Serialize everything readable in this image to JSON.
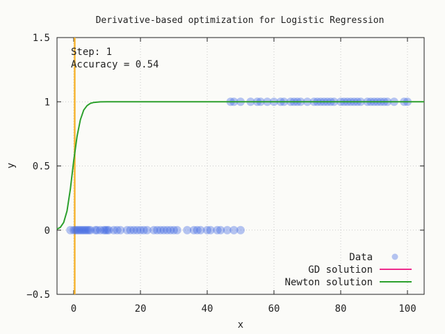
{
  "chart_data": {
    "type": "scatter",
    "title": "Derivative-based optimization for Logistic Regression",
    "xlabel": "x",
    "ylabel": "y",
    "xlim": [
      -5,
      105
    ],
    "ylim": [
      -0.5,
      1.5
    ],
    "x_ticks": [
      0,
      20,
      40,
      60,
      80,
      100
    ],
    "y_ticks": [
      -0.5,
      0,
      0.5,
      1,
      1.5
    ],
    "x_tick_labels": [
      "0",
      "20",
      "40",
      "60",
      "80",
      "100"
    ],
    "y_tick_labels": [
      "−0.5",
      "0",
      "0.5",
      "1",
      "1.5"
    ],
    "grid": true,
    "legend_position": "bottom-right",
    "annotations": {
      "step": "Step: 1",
      "accuracy": "Accuracy = 0.54"
    },
    "vertical_line": {
      "x": 0.3,
      "color": "#f6b532"
    },
    "series": [
      {
        "name": "Data",
        "type": "scatter",
        "color": "#4169e1",
        "y0_x": [
          -1,
          0,
          0.5,
          1,
          1.5,
          2,
          2.5,
          3,
          3.5,
          4,
          4.5,
          5,
          6.5,
          7,
          8,
          9,
          9.5,
          10,
          10.5,
          12,
          13,
          14,
          16,
          17,
          18,
          19,
          20,
          21,
          22,
          24,
          25,
          26,
          27,
          28,
          29,
          30,
          31,
          34,
          36,
          37,
          38,
          40,
          41,
          43,
          44,
          46,
          48,
          50
        ],
        "y1_x": [
          47,
          48,
          50,
          53,
          55,
          56,
          58,
          60,
          62,
          63,
          65,
          66,
          67,
          68,
          70,
          72,
          73,
          74,
          75,
          76,
          77,
          78,
          80,
          81,
          82,
          83,
          84,
          85,
          86,
          88,
          89,
          90,
          91,
          92,
          93,
          94,
          96,
          99,
          100
        ]
      },
      {
        "name": "GD solution",
        "type": "line",
        "color": "#ee2b8c"
      },
      {
        "name": "Newton solution",
        "type": "line",
        "color": "#2ca02c",
        "x": [
          -5,
          -4,
          -3,
          -2,
          -1,
          0,
          1,
          2,
          3,
          4,
          5,
          6,
          8,
          10,
          15,
          20,
          30,
          40,
          60,
          80,
          100,
          105
        ],
        "y": [
          0.008,
          0.022,
          0.06,
          0.15,
          0.32,
          0.54,
          0.73,
          0.86,
          0.935,
          0.97,
          0.988,
          0.995,
          0.999,
          1,
          1,
          1,
          1,
          1,
          1,
          1,
          1,
          1
        ]
      }
    ]
  }
}
